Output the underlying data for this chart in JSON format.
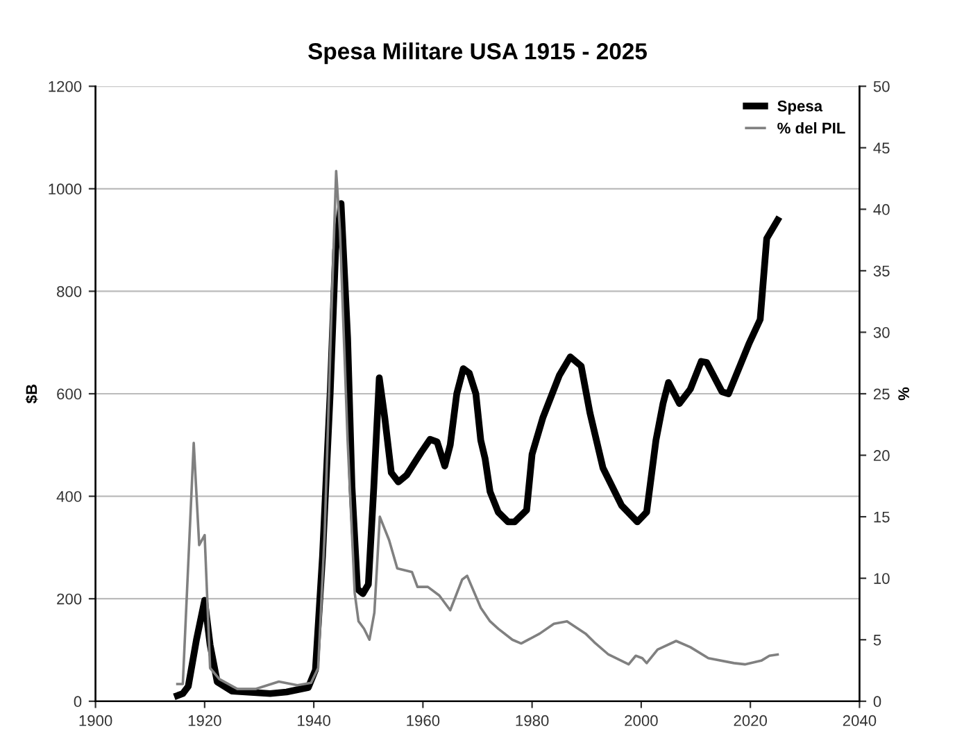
{
  "chart_data": {
    "type": "line",
    "title": "Spesa Militare USA 1915 - 2025",
    "ylabel": "$B",
    "y2label": "%",
    "series": [
      {
        "name": "Spesa",
        "color": "#000000",
        "x": [
          1915,
          1916,
          1917,
          1918.5,
          1920,
          1921,
          1922.3,
          1925,
          1932,
          1935,
          1939,
          1940.3,
          1941.6,
          1943,
          1944,
          1945,
          1946.2,
          1947,
          1948,
          1949,
          1950,
          1951,
          1952,
          1953,
          1954.2,
          1955.5,
          1957,
          1959.7,
          1961.3,
          1962.6,
          1964,
          1965,
          1966.2,
          1967.4,
          1968.5,
          1969.7,
          1970.6,
          1971.4,
          1972.3,
          1973.8,
          1975.6,
          1976.8,
          1979,
          1980,
          1982,
          1985,
          1987,
          1989,
          1990.6,
          1993,
          1996.4,
          1999.3,
          2001,
          2002.7,
          2004,
          2005,
          2007,
          2009,
          2011,
          2012,
          2014.8,
          2016,
          2019.8,
          2021.8,
          2023,
          2025
        ],
        "values": [
          11,
          15,
          29,
          120,
          197,
          110,
          38,
          20,
          15,
          18,
          27,
          61,
          283,
          600,
          880,
          971,
          708,
          418,
          219,
          210,
          228,
          418,
          631,
          554,
          446,
          428,
          441,
          486,
          511,
          506,
          459,
          500,
          600,
          649,
          640,
          600,
          509,
          473,
          409,
          369,
          350,
          350,
          373,
          482,
          554,
          636,
          672,
          654,
          563,
          455,
          382,
          350,
          369,
          509,
          581,
          622,
          581,
          609,
          663,
          661,
          604,
          600,
          699,
          745,
          903,
          939
        ]
      },
      {
        "name": "% del PIL",
        "color": "#808080",
        "axis": "y2",
        "x": [
          1915,
          1916,
          1918,
          1919,
          1920,
          1921,
          1922.7,
          1926,
          1929.4,
          1933.6,
          1937,
          1939.5,
          1940.8,
          1942,
          1943.3,
          1944.1,
          1944.8,
          1946.2,
          1947.5,
          1948.2,
          1949.2,
          1950.2,
          1951.1,
          1952.1,
          1953.8,
          1955.3,
          1958,
          1959,
          1960.9,
          1963,
          1965,
          1967.2,
          1968.1,
          1970.6,
          1972.3,
          1973.8,
          1976.4,
          1978,
          1981.4,
          1984,
          1986.4,
          1989.8,
          1991.4,
          1994,
          1997.7,
          1999,
          2000.2,
          2001,
          2003,
          2006.4,
          2009,
          2012.3,
          2017,
          2019,
          2022,
          2023.5,
          2025
        ],
        "values": [
          1.4,
          1.4,
          21.0,
          12.7,
          13.5,
          2.7,
          1.8,
          1.0,
          1.0,
          1.6,
          1.3,
          1.5,
          2.7,
          13.7,
          32.5,
          43.1,
          38.2,
          21.2,
          8.8,
          6.5,
          5.9,
          5.0,
          7.2,
          15.0,
          13.1,
          10.8,
          10.5,
          9.3,
          9.3,
          8.6,
          7.4,
          9.9,
          10.2,
          7.6,
          6.5,
          5.9,
          5.0,
          4.7,
          5.5,
          6.3,
          6.5,
          5.5,
          4.8,
          3.8,
          3.0,
          3.7,
          3.5,
          3.1,
          4.2,
          4.9,
          4.4,
          3.5,
          3.1,
          3.0,
          3.3,
          3.7,
          3.8
        ]
      }
    ],
    "xlim": [
      1900,
      2040
    ],
    "xticks": [
      1900,
      1920,
      1940,
      1960,
      1980,
      2000,
      2020,
      2040
    ],
    "ylim": [
      0,
      1200
    ],
    "yticks": [
      0,
      200,
      400,
      600,
      800,
      1000,
      1200
    ],
    "y2lim": [
      0,
      50
    ],
    "y2ticks": [
      0,
      5,
      10,
      15,
      20,
      25,
      30,
      35,
      40,
      45,
      50
    ],
    "grid": "y",
    "legend": "top right"
  }
}
